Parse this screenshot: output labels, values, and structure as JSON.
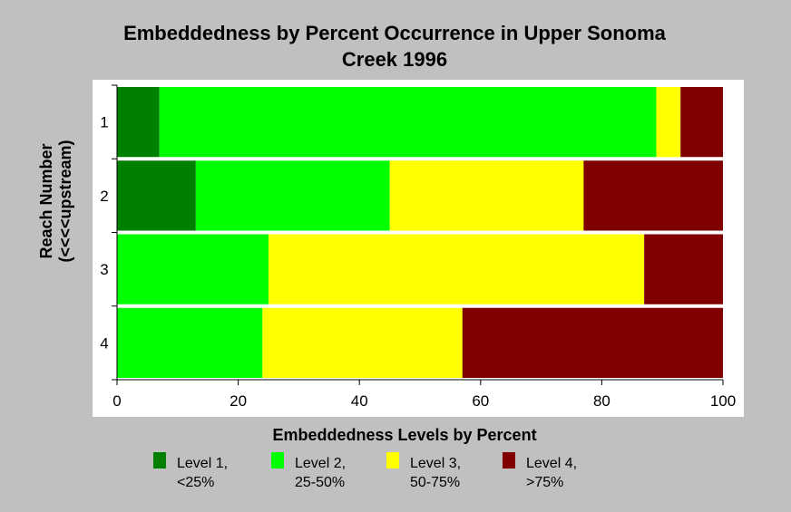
{
  "chart_data": {
    "type": "bar",
    "orientation": "horizontal",
    "stacked": true,
    "title": [
      "Embeddedness by Percent Occurrence in Upper Sonoma",
      "Creek 1996"
    ],
    "xlabel": "Embeddedness Levels by Percent",
    "ylabel": [
      "Reach Number",
      "(<<<<upstream)"
    ],
    "xlim": [
      0,
      100
    ],
    "xticks": [
      "0",
      "20",
      "40",
      "60",
      "80",
      "100"
    ],
    "categories": [
      "1",
      "2",
      "3",
      "4"
    ],
    "series": [
      {
        "name": [
          "Level 1,",
          "<25%"
        ],
        "color": "#008000",
        "values": [
          7,
          13,
          0,
          0
        ]
      },
      {
        "name": [
          "Level 2,",
          "25-50%"
        ],
        "color": "#00ff00",
        "values": [
          82,
          32,
          25,
          24
        ]
      },
      {
        "name": [
          "Level 3,",
          "50-75%"
        ],
        "color": "#ffff00",
        "values": [
          4,
          32,
          62,
          33
        ]
      },
      {
        "name": [
          "Level 4,",
          ">75%"
        ],
        "color": "#800000",
        "values": [
          7,
          23,
          13,
          43
        ]
      }
    ],
    "grid": false,
    "legend": "bottom"
  }
}
